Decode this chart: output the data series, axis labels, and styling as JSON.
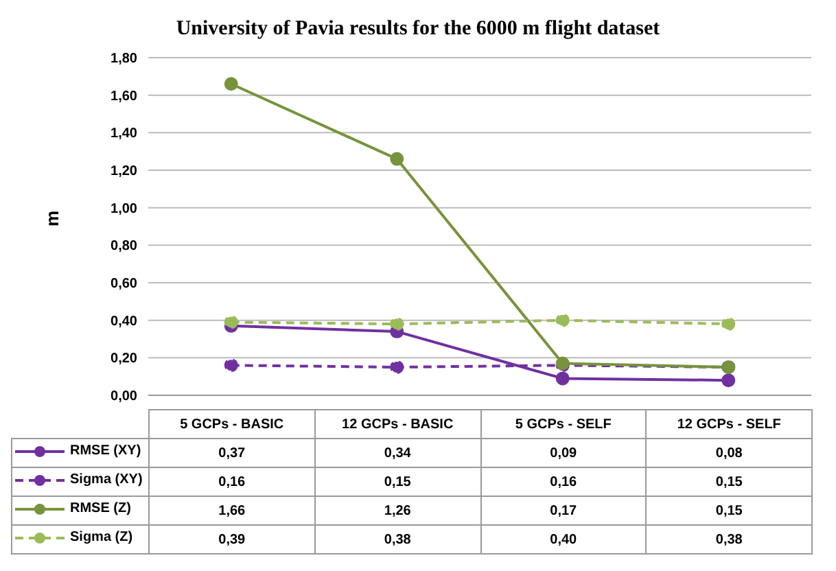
{
  "chart_data": {
    "type": "line",
    "title": "University of Pavia results for the 6000 m flight dataset",
    "ylabel": "m",
    "categories": [
      "5 GCPs - BASIC",
      "12 GCPs - BASIC",
      "5 GCPs - SELF",
      "12 GCPs - SELF"
    ],
    "series": [
      {
        "name": "RMSE (XY)",
        "color": "#7030a0",
        "values": [
          0.37,
          0.34,
          0.09,
          0.08
        ],
        "value_labels": [
          "0,37",
          "0,34",
          "0,09",
          "0,08"
        ],
        "line_style": "solid"
      },
      {
        "name": "Sigma (XY)",
        "color": "#7030a0",
        "values": [
          0.16,
          0.15,
          0.16,
          0.15
        ],
        "value_labels": [
          "0,16",
          "0,15",
          "0,16",
          "0,15"
        ],
        "line_style": "dashed"
      },
      {
        "name": "RMSE (Z)",
        "color": "#77933c",
        "values": [
          1.66,
          1.26,
          0.17,
          0.15
        ],
        "value_labels": [
          "1,66",
          "1,26",
          "0,17",
          "0,15"
        ],
        "line_style": "solid"
      },
      {
        "name": "Sigma (Z)",
        "color": "#9bbb59",
        "values": [
          0.39,
          0.38,
          0.4,
          0.38
        ],
        "value_labels": [
          "0,39",
          "0,38",
          "0,40",
          "0,38"
        ],
        "line_style": "dashed"
      }
    ],
    "ylim": [
      0,
      1.8
    ],
    "yticks": [
      {
        "value": 0,
        "label": "0,00"
      },
      {
        "value": 0.2,
        "label": "0,20"
      },
      {
        "value": 0.4,
        "label": "0,40"
      },
      {
        "value": 0.6,
        "label": "0,60"
      },
      {
        "value": 0.8,
        "label": "0,80"
      },
      {
        "value": 1.0,
        "label": "1,00"
      },
      {
        "value": 1.2,
        "label": "1,20"
      },
      {
        "value": 1.4,
        "label": "1,40"
      },
      {
        "value": 1.6,
        "label": "1,60"
      },
      {
        "value": 1.8,
        "label": "1,80"
      }
    ],
    "grid": "y",
    "legend": "bottom",
    "marker": "circle"
  }
}
